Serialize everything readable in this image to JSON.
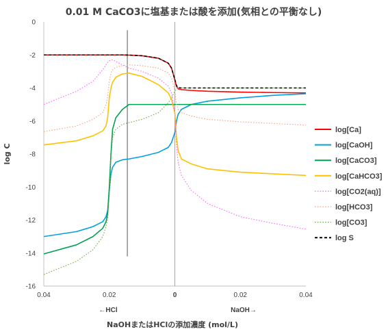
{
  "chart_data": {
    "type": "line",
    "title": "0.01 M CaCO3に塩基または酸を添加(気相との平衡なし)",
    "xlabel": "NaOHまたはHClの添加濃度 (mol/L)",
    "ylabel": "log C",
    "ylim": [
      -16,
      0
    ],
    "yticks": [
      "0",
      "-2",
      "-4",
      "-6",
      "-8",
      "-10",
      "-12",
      "-14",
      "-16"
    ],
    "xticks": [
      "0.04",
      "0.02",
      "0",
      "0.02",
      "0.04"
    ],
    "xlim_note_left": "←HCl",
    "xlim_note_right": "NaOH→",
    "grid": false,
    "legend_position": "right",
    "x": [
      -0.04,
      -0.03,
      -0.025,
      -0.022,
      -0.021,
      -0.0205,
      -0.02,
      -0.0195,
      -0.019,
      -0.018,
      -0.016,
      -0.014,
      -0.01,
      -0.005,
      -0.002,
      -0.001,
      0.0,
      0.0005,
      0.001,
      0.002,
      0.005,
      0.01,
      0.02,
      0.03,
      0.04
    ],
    "series": [
      {
        "name": "log[Ca]",
        "color": "#ff0000",
        "dash": "solid",
        "values": [
          -2.0,
          -2.0,
          -2.0,
          -2.0,
          -2.0,
          -2.0,
          -2.0,
          -2.0,
          -2.0,
          -2.0,
          -2.0,
          -2.01,
          -2.05,
          -2.2,
          -2.5,
          -2.8,
          -3.5,
          -3.9,
          -4.05,
          -4.1,
          -4.15,
          -4.2,
          -4.25,
          -4.28,
          -4.3
        ]
      },
      {
        "name": "log[CaOH]",
        "color": "#00a0e0",
        "dash": "solid",
        "values": [
          -13.0,
          -12.7,
          -12.4,
          -12.1,
          -11.8,
          -11.4,
          -10.2,
          -9.2,
          -8.8,
          -8.5,
          -8.35,
          -8.3,
          -8.15,
          -7.9,
          -7.6,
          -7.3,
          -6.7,
          -6.0,
          -5.6,
          -5.3,
          -5.0,
          -4.8,
          -4.6,
          -4.45,
          -4.35
        ]
      },
      {
        "name": "log[CaCO3]",
        "color": "#00a050",
        "dash": "solid",
        "values": [
          -14.05,
          -13.5,
          -13.0,
          -12.5,
          -12.1,
          -11.6,
          -10.0,
          -8.0,
          -6.5,
          -5.8,
          -5.3,
          -5.0,
          -5.0,
          -5.0,
          -5.0,
          -5.0,
          -5.0,
          -5.0,
          -5.0,
          -5.0,
          -5.0,
          -5.0,
          -5.0,
          -5.0,
          -5.0
        ]
      },
      {
        "name": "log[CaHCO3]",
        "color": "#ffc000",
        "dash": "solid",
        "values": [
          -7.45,
          -7.2,
          -6.9,
          -6.6,
          -6.3,
          -5.8,
          -4.6,
          -4.0,
          -3.65,
          -3.35,
          -3.15,
          -3.1,
          -3.3,
          -3.8,
          -4.3,
          -4.7,
          -5.5,
          -7.0,
          -7.8,
          -8.3,
          -8.6,
          -8.9,
          -9.1,
          -9.2,
          -9.3
        ]
      },
      {
        "name": "log[CO2(aq)]",
        "color": "#ff66ff",
        "dash": "dotted",
        "values": [
          -5.0,
          -4.2,
          -3.6,
          -2.9,
          -2.6,
          -2.45,
          -2.35,
          -2.3,
          -2.3,
          -2.4,
          -2.6,
          -2.8,
          -3.0,
          -3.4,
          -3.9,
          -4.3,
          -5.5,
          -7.5,
          -8.5,
          -9.3,
          -10.2,
          -11.0,
          -11.8,
          -12.2,
          -12.55
        ]
      },
      {
        "name": "log[HCO3]",
        "color": "#f4a582",
        "dash": "dotted",
        "values": [
          -6.65,
          -6.3,
          -5.9,
          -5.5,
          -5.0,
          -4.5,
          -3.6,
          -3.1,
          -2.9,
          -2.75,
          -2.65,
          -2.6,
          -2.65,
          -2.8,
          -3.1,
          -3.4,
          -4.2,
          -5.0,
          -5.3,
          -5.5,
          -5.7,
          -5.9,
          -6.05,
          -6.15,
          -6.25
        ]
      },
      {
        "name": "log[CO3]",
        "color": "#70ad47",
        "dash": "dotted",
        "values": [
          -15.3,
          -14.5,
          -13.8,
          -13.0,
          -12.4,
          -11.9,
          -10.5,
          -8.3,
          -7.0,
          -6.5,
          -6.2,
          -6.1,
          -5.9,
          -5.5,
          -4.9,
          -4.6,
          -4.2,
          -4.05,
          -4.02,
          -4.0,
          -4.0,
          -4.0,
          -4.0,
          -4.0,
          -4.0
        ]
      },
      {
        "name": "log S",
        "color": "#000000",
        "dash": "dashed",
        "values": [
          -2.0,
          -2.0,
          -2.0,
          -2.0,
          -2.0,
          -2.0,
          -2.0,
          -2.0,
          -2.0,
          -2.0,
          -2.0,
          -2.01,
          -2.05,
          -2.2,
          -2.5,
          -2.8,
          -3.5,
          -3.85,
          -3.98,
          -4.0,
          -4.0,
          -4.0,
          -4.0,
          -4.0,
          -4.0
        ]
      }
    ],
    "reference_lines": {
      "vertical_x": [
        -0.0145,
        0.0
      ],
      "hcl_line_ylim": [
        -14.2,
        -0.5
      ]
    }
  }
}
